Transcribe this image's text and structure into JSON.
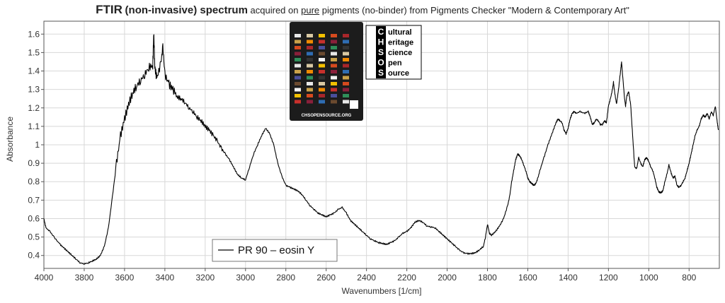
{
  "title": {
    "main": "FTIR",
    "qualifier": "(non-invasive) spectrum",
    "prefix": "acquired on",
    "pure": "pure",
    "suffix": "pigments (no-binder) from Pigments Checker \"Modern & Contemporary Art\""
  },
  "logo": {
    "letters": [
      "C",
      "H",
      "S",
      "O",
      "S"
    ],
    "words": [
      "ultural",
      "eritage",
      "cience",
      "pen",
      "ource"
    ]
  },
  "card": {
    "footer": "CHSOPENSOURCE.ORG"
  },
  "chart_data": {
    "type": "line",
    "xlabel": "Wavenumbers [1/cm]",
    "ylabel": "Absorbance",
    "xlim": [
      4000,
      650
    ],
    "ylim": [
      0.33,
      1.67
    ],
    "x_reversed": true,
    "grid": true,
    "legend_position": "bottom-center",
    "x_ticks": [
      "4000",
      "3800",
      "3600",
      "3400",
      "3200",
      "3000",
      "2800",
      "2600",
      "2400",
      "2200",
      "2000",
      "1800",
      "1600",
      "1400",
      "1200",
      "1000",
      "800"
    ],
    "y_ticks": [
      "0.4",
      "0.5",
      "0.6",
      "0.7",
      "0.8",
      "0.9",
      "1",
      "1.1",
      "1.2",
      "1.3",
      "1.4",
      "1.5",
      "1.6"
    ],
    "series": [
      {
        "name": "PR 90 – eosin Y",
        "color": "#000000",
        "points": [
          [
            4000,
            0.6
          ],
          [
            3990,
            0.55
          ],
          [
            3970,
            0.53
          ],
          [
            3950,
            0.5
          ],
          [
            3920,
            0.46
          ],
          [
            3900,
            0.44
          ],
          [
            3880,
            0.42
          ],
          [
            3860,
            0.4
          ],
          [
            3840,
            0.38
          ],
          [
            3820,
            0.36
          ],
          [
            3800,
            0.355
          ],
          [
            3780,
            0.36
          ],
          [
            3760,
            0.37
          ],
          [
            3740,
            0.38
          ],
          [
            3720,
            0.4
          ],
          [
            3700,
            0.45
          ],
          [
            3680,
            0.55
          ],
          [
            3660,
            0.72
          ],
          [
            3640,
            0.9
          ],
          [
            3620,
            1.05
          ],
          [
            3600,
            1.14
          ],
          [
            3580,
            1.22
          ],
          [
            3560,
            1.28
          ],
          [
            3540,
            1.32
          ],
          [
            3520,
            1.35
          ],
          [
            3500,
            1.38
          ],
          [
            3480,
            1.42
          ],
          [
            3460,
            1.43
          ],
          [
            3455,
            1.61
          ],
          [
            3450,
            1.42
          ],
          [
            3440,
            1.36
          ],
          [
            3420,
            1.44
          ],
          [
            3410,
            1.53
          ],
          [
            3400,
            1.38
          ],
          [
            3380,
            1.33
          ],
          [
            3360,
            1.3
          ],
          [
            3340,
            1.26
          ],
          [
            3320,
            1.25
          ],
          [
            3300,
            1.23
          ],
          [
            3280,
            1.2
          ],
          [
            3260,
            1.18
          ],
          [
            3240,
            1.15
          ],
          [
            3220,
            1.13
          ],
          [
            3200,
            1.1
          ],
          [
            3180,
            1.08
          ],
          [
            3160,
            1.05
          ],
          [
            3140,
            1.02
          ],
          [
            3120,
            0.98
          ],
          [
            3100,
            0.95
          ],
          [
            3080,
            0.92
          ],
          [
            3060,
            0.88
          ],
          [
            3040,
            0.84
          ],
          [
            3020,
            0.82
          ],
          [
            3000,
            0.81
          ],
          [
            2980,
            0.88
          ],
          [
            2960,
            0.95
          ],
          [
            2940,
            1.0
          ],
          [
            2920,
            1.05
          ],
          [
            2900,
            1.09
          ],
          [
            2880,
            1.06
          ],
          [
            2860,
            1.0
          ],
          [
            2840,
            0.9
          ],
          [
            2820,
            0.83
          ],
          [
            2800,
            0.78
          ],
          [
            2780,
            0.77
          ],
          [
            2760,
            0.76
          ],
          [
            2740,
            0.75
          ],
          [
            2720,
            0.73
          ],
          [
            2700,
            0.7
          ],
          [
            2680,
            0.67
          ],
          [
            2660,
            0.65
          ],
          [
            2640,
            0.63
          ],
          [
            2620,
            0.62
          ],
          [
            2600,
            0.61
          ],
          [
            2580,
            0.62
          ],
          [
            2560,
            0.63
          ],
          [
            2540,
            0.65
          ],
          [
            2520,
            0.66
          ],
          [
            2500,
            0.63
          ],
          [
            2480,
            0.59
          ],
          [
            2460,
            0.57
          ],
          [
            2440,
            0.55
          ],
          [
            2420,
            0.53
          ],
          [
            2400,
            0.51
          ],
          [
            2380,
            0.49
          ],
          [
            2360,
            0.48
          ],
          [
            2340,
            0.47
          ],
          [
            2320,
            0.465
          ],
          [
            2300,
            0.46
          ],
          [
            2280,
            0.47
          ],
          [
            2260,
            0.48
          ],
          [
            2240,
            0.5
          ],
          [
            2220,
            0.52
          ],
          [
            2200,
            0.53
          ],
          [
            2180,
            0.55
          ],
          [
            2160,
            0.58
          ],
          [
            2140,
            0.59
          ],
          [
            2120,
            0.58
          ],
          [
            2100,
            0.56
          ],
          [
            2080,
            0.555
          ],
          [
            2060,
            0.55
          ],
          [
            2040,
            0.53
          ],
          [
            2020,
            0.51
          ],
          [
            2000,
            0.49
          ],
          [
            1980,
            0.47
          ],
          [
            1960,
            0.45
          ],
          [
            1940,
            0.43
          ],
          [
            1920,
            0.415
          ],
          [
            1900,
            0.41
          ],
          [
            1880,
            0.41
          ],
          [
            1860,
            0.415
          ],
          [
            1840,
            0.43
          ],
          [
            1820,
            0.45
          ],
          [
            1810,
            0.5
          ],
          [
            1800,
            0.57
          ],
          [
            1790,
            0.52
          ],
          [
            1780,
            0.51
          ],
          [
            1760,
            0.53
          ],
          [
            1740,
            0.56
          ],
          [
            1720,
            0.6
          ],
          [
            1700,
            0.67
          ],
          [
            1690,
            0.72
          ],
          [
            1680,
            0.8
          ],
          [
            1670,
            0.86
          ],
          [
            1660,
            0.92
          ],
          [
            1650,
            0.95
          ],
          [
            1640,
            0.94
          ],
          [
            1630,
            0.92
          ],
          [
            1620,
            0.89
          ],
          [
            1610,
            0.86
          ],
          [
            1600,
            0.82
          ],
          [
            1590,
            0.8
          ],
          [
            1580,
            0.79
          ],
          [
            1570,
            0.78
          ],
          [
            1560,
            0.79
          ],
          [
            1550,
            0.82
          ],
          [
            1540,
            0.86
          ],
          [
            1520,
            0.93
          ],
          [
            1500,
            1.0
          ],
          [
            1480,
            1.06
          ],
          [
            1460,
            1.12
          ],
          [
            1450,
            1.14
          ],
          [
            1440,
            1.13
          ],
          [
            1430,
            1.12
          ],
          [
            1420,
            1.08
          ],
          [
            1410,
            1.06
          ],
          [
            1400,
            1.09
          ],
          [
            1390,
            1.14
          ],
          [
            1380,
            1.17
          ],
          [
            1370,
            1.18
          ],
          [
            1360,
            1.17
          ],
          [
            1340,
            1.18
          ],
          [
            1320,
            1.17
          ],
          [
            1300,
            1.18
          ],
          [
            1290,
            1.15
          ],
          [
            1280,
            1.11
          ],
          [
            1270,
            1.12
          ],
          [
            1260,
            1.14
          ],
          [
            1250,
            1.13
          ],
          [
            1240,
            1.11
          ],
          [
            1230,
            1.11
          ],
          [
            1220,
            1.13
          ],
          [
            1210,
            1.12
          ],
          [
            1200,
            1.21
          ],
          [
            1190,
            1.25
          ],
          [
            1180,
            1.3
          ],
          [
            1175,
            1.34
          ],
          [
            1170,
            1.29
          ],
          [
            1160,
            1.22
          ],
          [
            1150,
            1.3
          ],
          [
            1140,
            1.4
          ],
          [
            1135,
            1.45
          ],
          [
            1130,
            1.38
          ],
          [
            1120,
            1.25
          ],
          [
            1115,
            1.21
          ],
          [
            1110,
            1.26
          ],
          [
            1100,
            1.29
          ],
          [
            1090,
            1.22
          ],
          [
            1080,
            1.05
          ],
          [
            1070,
            0.88
          ],
          [
            1060,
            0.87
          ],
          [
            1050,
            0.93
          ],
          [
            1040,
            0.9
          ],
          [
            1030,
            0.88
          ],
          [
            1020,
            0.92
          ],
          [
            1010,
            0.93
          ],
          [
            1000,
            0.91
          ],
          [
            990,
            0.88
          ],
          [
            980,
            0.86
          ],
          [
            970,
            0.82
          ],
          [
            960,
            0.77
          ],
          [
            950,
            0.745
          ],
          [
            940,
            0.74
          ],
          [
            930,
            0.75
          ],
          [
            920,
            0.8
          ],
          [
            910,
            0.84
          ],
          [
            900,
            0.89
          ],
          [
            890,
            0.85
          ],
          [
            880,
            0.82
          ],
          [
            870,
            0.83
          ],
          [
            860,
            0.78
          ],
          [
            850,
            0.77
          ],
          [
            840,
            0.78
          ],
          [
            830,
            0.8
          ],
          [
            820,
            0.82
          ],
          [
            810,
            0.86
          ],
          [
            800,
            0.9
          ],
          [
            790,
            0.95
          ],
          [
            780,
            1.0
          ],
          [
            770,
            1.05
          ],
          [
            760,
            1.08
          ],
          [
            750,
            1.1
          ],
          [
            740,
            1.14
          ],
          [
            730,
            1.16
          ],
          [
            720,
            1.15
          ],
          [
            710,
            1.17
          ],
          [
            700,
            1.14
          ],
          [
            690,
            1.18
          ],
          [
            680,
            1.16
          ],
          [
            670,
            1.21
          ],
          [
            660,
            1.12
          ],
          [
            655,
            1.08
          ]
        ]
      }
    ]
  }
}
